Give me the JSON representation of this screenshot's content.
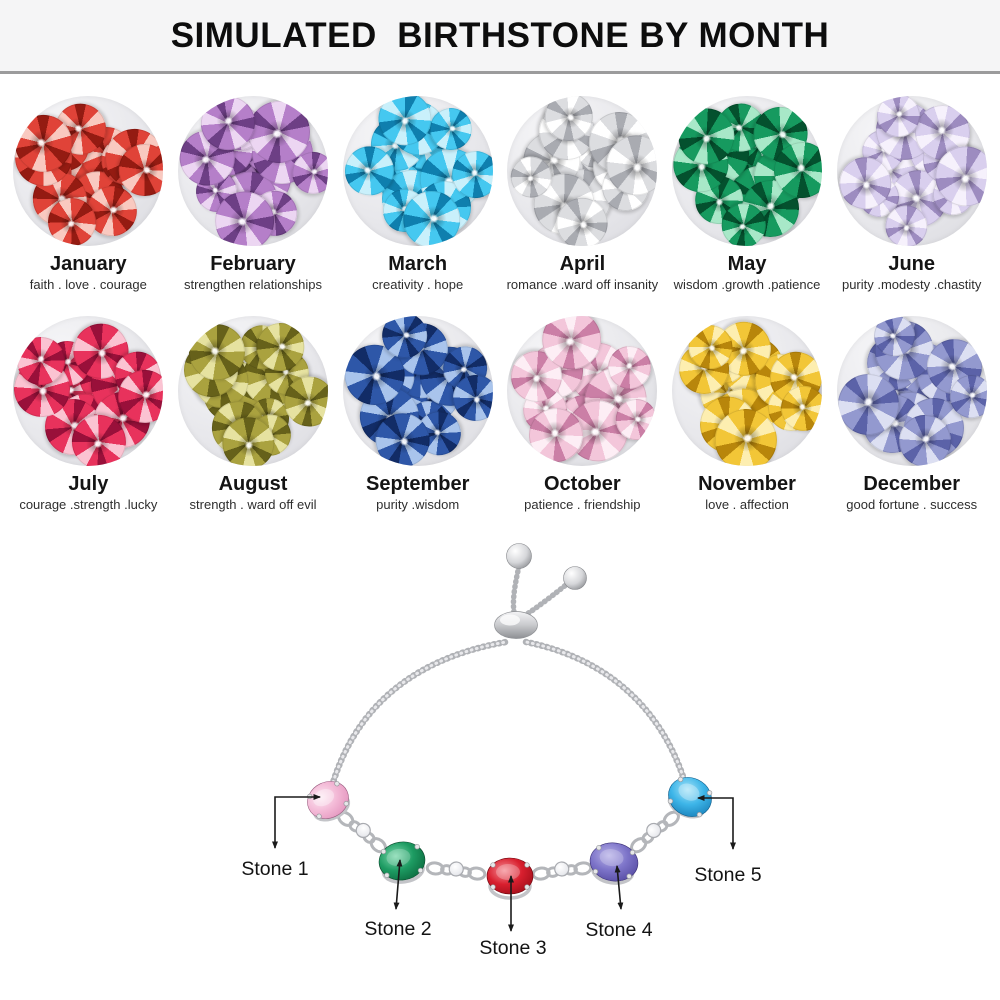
{
  "header": {
    "title": "SIMULATED  BIRTHSTONE BY MONTH",
    "background": "#f5f5f6",
    "divider_color": "#9b9b9c"
  },
  "months": [
    {
      "name": "January",
      "traits": "faith . love . courage",
      "gem_light": "#f9c9c0",
      "gem_base": "#e04338",
      "gem_dark": "#941b12"
    },
    {
      "name": "February",
      "traits": "strengthen relationships",
      "gem_light": "#ecd6f2",
      "gem_base": "#b57fc9",
      "gem_dark": "#6d3f85"
    },
    {
      "name": "March",
      "traits": "creativity . hope",
      "gem_light": "#c9f0fb",
      "gem_base": "#45c8f0",
      "gem_dark": "#0f7fae"
    },
    {
      "name": "April",
      "traits": "romance .ward off insanity",
      "gem_light": "#ffffff",
      "gem_base": "#dcdde0",
      "gem_dark": "#a9abb1"
    },
    {
      "name": "May",
      "traits": "wisdom .growth .patience",
      "gem_light": "#a8e8c8",
      "gem_base": "#169a5f",
      "gem_dark": "#04512e"
    },
    {
      "name": "June",
      "traits": "purity .modesty .chastity",
      "gem_light": "#f6f1fc",
      "gem_base": "#d9cfee",
      "gem_dark": "#9d8cc0"
    },
    {
      "name": "July",
      "traits": "courage .strength .lucky",
      "gem_light": "#fbc3d2",
      "gem_base": "#e8325c",
      "gem_dark": "#99103a"
    },
    {
      "name": "August",
      "traits": "strength  . ward off evil",
      "gem_light": "#e6e2a0",
      "gem_base": "#aaa23f",
      "gem_dark": "#66611a"
    },
    {
      "name": "September",
      "traits": "purity .wisdom",
      "gem_light": "#a9c4ec",
      "gem_base": "#2e57a8",
      "gem_dark": "#122c66"
    },
    {
      "name": "October",
      "traits": "patience . friendship",
      "gem_light": "#fdeef5",
      "gem_base": "#f3c6da",
      "gem_dark": "#cb7fa6"
    },
    {
      "name": "November",
      "traits": "love . affection",
      "gem_light": "#fdeeb0",
      "gem_base": "#f2c637",
      "gem_dark": "#b8860b"
    },
    {
      "name": "December",
      "traits": "good fortune . success",
      "gem_light": "#dcdff2",
      "gem_base": "#9399cf",
      "gem_dark": "#5b62a8"
    }
  ],
  "bracelet": {
    "labels": [
      {
        "text": "Stone 1"
      },
      {
        "text": "Stone 2"
      },
      {
        "text": "Stone 3"
      },
      {
        "text": "Stone 4"
      },
      {
        "text": "Stone 5"
      }
    ],
    "stones": [
      {
        "name": "stone-1",
        "color_light": "#fde9f3",
        "color_base": "#f3b9d6",
        "color_dark": "#df8ab7"
      },
      {
        "name": "stone-2",
        "color_light": "#7fd9ae",
        "color_base": "#1d9b62",
        "color_dark": "#065c34"
      },
      {
        "name": "stone-3",
        "color_light": "#f58e96",
        "color_base": "#d81f2e",
        "color_dark": "#8f0813"
      },
      {
        "name": "stone-4",
        "color_light": "#b9b3e8",
        "color_base": "#7d74c9",
        "color_dark": "#4a3f96"
      },
      {
        "name": "stone-5",
        "color_light": "#a5e3f8",
        "color_base": "#3db5e8",
        "color_dark": "#0f72ad"
      }
    ],
    "metal_color": "#c7c8cc",
    "arrow_color": "#1a1a1a"
  }
}
